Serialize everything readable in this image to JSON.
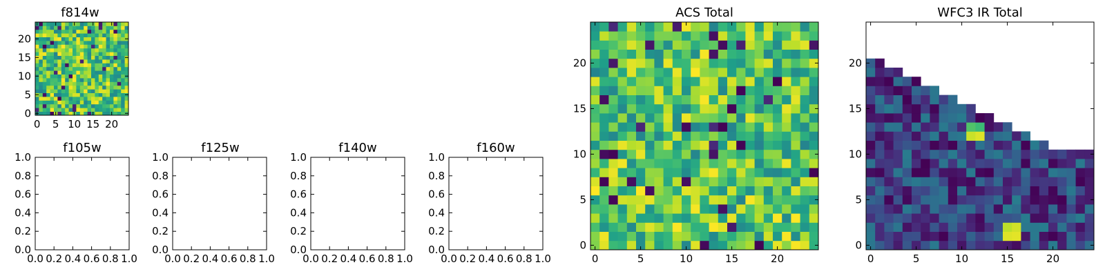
{
  "colormap": {
    "name": "viridis",
    "stops": [
      "#440154",
      "#482878",
      "#3e4989",
      "#31688e",
      "#26828e",
      "#1f9e89",
      "#35b779",
      "#6ece58",
      "#b5de2b",
      "#fde725"
    ]
  },
  "chart_data": [
    {
      "id": "f814w",
      "type": "heatmap",
      "title": "f814w",
      "grid_size": 25,
      "xlim": [
        -0.5,
        24.5
      ],
      "ylim": [
        -0.5,
        24.5
      ],
      "xticks": [
        0,
        5,
        10,
        15,
        20
      ],
      "yticks": [
        0,
        5,
        10,
        15,
        20
      ],
      "fill": "random_uniform",
      "value_range": [
        0.0,
        1.0
      ],
      "seed": 814
    },
    {
      "id": "f105w",
      "type": "empty",
      "title": "f105w",
      "xlim": [
        0,
        1
      ],
      "ylim": [
        0,
        1
      ],
      "xticks": [
        "0.0",
        "0.2",
        "0.4",
        "0.6",
        "0.8",
        "1.0"
      ],
      "yticks": [
        "0.0",
        "0.2",
        "0.4",
        "0.6",
        "0.8",
        "1.0"
      ]
    },
    {
      "id": "f125w",
      "type": "empty",
      "title": "f125w",
      "xlim": [
        0,
        1
      ],
      "ylim": [
        0,
        1
      ],
      "xticks": [
        "0.0",
        "0.2",
        "0.4",
        "0.6",
        "0.8",
        "1.0"
      ],
      "yticks": [
        "0.0",
        "0.2",
        "0.4",
        "0.6",
        "0.8",
        "1.0"
      ]
    },
    {
      "id": "f140w",
      "type": "empty",
      "title": "f140w",
      "xlim": [
        0,
        1
      ],
      "ylim": [
        0,
        1
      ],
      "xticks": [
        "0.0",
        "0.2",
        "0.4",
        "0.6",
        "0.8",
        "1.0"
      ],
      "yticks": [
        "0.0",
        "0.2",
        "0.4",
        "0.6",
        "0.8",
        "1.0"
      ]
    },
    {
      "id": "f160w",
      "type": "empty",
      "title": "f160w",
      "xlim": [
        0,
        1
      ],
      "ylim": [
        0,
        1
      ],
      "xticks": [
        "0.0",
        "0.2",
        "0.4",
        "0.6",
        "0.8",
        "1.0"
      ],
      "yticks": [
        "0.0",
        "0.2",
        "0.4",
        "0.6",
        "0.8",
        "1.0"
      ]
    },
    {
      "id": "acs_total",
      "type": "heatmap",
      "title": "ACS Total",
      "grid_size": 25,
      "xlim": [
        -0.5,
        24.5
      ],
      "ylim": [
        -0.5,
        24.5
      ],
      "xticks": [
        0,
        5,
        10,
        15,
        20
      ],
      "yticks": [
        0,
        5,
        10,
        15,
        20
      ],
      "fill": "random_uniform",
      "value_range": [
        0.0,
        1.0
      ],
      "seed": 2024
    },
    {
      "id": "wfc3_ir_total",
      "type": "heatmap",
      "title": "WFC3 IR Total",
      "grid_size": 25,
      "xlim": [
        -0.5,
        24.5
      ],
      "ylim": [
        -0.5,
        24.5
      ],
      "xticks": [
        0,
        5,
        10,
        15,
        20
      ],
      "yticks": [
        0,
        5,
        10,
        15,
        20
      ],
      "fill": "triangular_coverage",
      "column_heights": [
        21,
        21,
        20,
        20,
        19,
        19,
        18,
        18,
        17,
        17,
        16,
        16,
        15,
        15,
        14,
        14,
        13,
        13,
        12,
        12,
        11,
        11,
        11,
        11,
        11
      ],
      "value_range": [
        0.0,
        0.42
      ],
      "hotspots": [
        {
          "x": 11,
          "y": 12,
          "value": 0.92
        },
        {
          "x": 12,
          "y": 12,
          "value": 0.95
        },
        {
          "x": 11,
          "y": 13,
          "value": 0.72
        },
        {
          "x": 12,
          "y": 13,
          "value": 0.68
        },
        {
          "x": 15,
          "y": 1,
          "value": 0.95
        },
        {
          "x": 16,
          "y": 1,
          "value": 0.96
        },
        {
          "x": 15,
          "y": 2,
          "value": 0.9
        },
        {
          "x": 16,
          "y": 2,
          "value": 0.93
        }
      ],
      "seed": 160
    }
  ]
}
